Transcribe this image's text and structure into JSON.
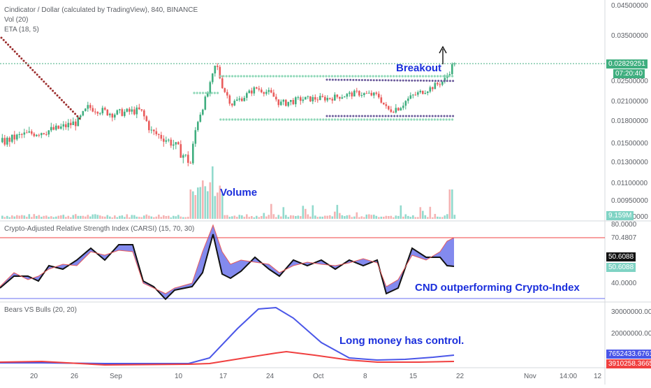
{
  "main_pane": {
    "title": "Cindicator / Dollar (calculated by TradingView), 840, BINANCE",
    "vol_label": "Vol (20)",
    "eta_label": "ETA (18, 5)",
    "price_ticks": [
      "0.04500000",
      "0.03500000",
      "0.02829251",
      "0.02500000",
      "0.02100000",
      "0.01800000",
      "0.01500000",
      "0.01300000",
      "0.01100000",
      "0.00950000",
      "0.00800000"
    ],
    "last_price": "0.02829251",
    "countdown": "07:20:40",
    "volume_value": "9.159M"
  },
  "rsi_pane": {
    "title": "Crypto-Adjusted Relative Strength Index (CARSI) (15, 70, 30)",
    "ticks": [
      "80.0000",
      "70.4807",
      "40.0000"
    ],
    "value_a": "50.6088",
    "value_b": "50.6088"
  },
  "bvb_pane": {
    "title": "Bears VS Bulls (20, 20)",
    "ticks": [
      "30000000.0000",
      "20000000.0000"
    ],
    "value_blue": "7652433.6761",
    "value_red": "3910258.3665"
  },
  "time_axis": [
    "20",
    "26",
    "Sep",
    "10",
    "17",
    "24",
    "Oct",
    "8",
    "15",
    "22",
    "Nov",
    "14:00",
    "12"
  ],
  "annotations": {
    "breakout": "Breakout",
    "volume": "Volume",
    "cnd": "CND outperforming Crypto-Index",
    "long_money": "Long money has control."
  },
  "colors": {
    "up": "#7fd3c4",
    "down": "#e95c5c",
    "up_candle": "#3fae7f",
    "blue_line": "#4a56e8",
    "red_line": "#f04040",
    "annotation": "#1b2fdc",
    "countdown_bg": "#3fae7f"
  },
  "chart_data": [
    {
      "type": "candlestick",
      "title": "Cindicator / Dollar (calculated by TradingView), 840, BINANCE",
      "x": [
        "20",
        "26",
        "Sep",
        "10",
        "17",
        "24",
        "Oct",
        "8",
        "15",
        "22"
      ],
      "close_approx": [
        0.0158,
        0.0172,
        0.0188,
        0.0131,
        0.024,
        0.0222,
        0.021,
        0.0215,
        0.02,
        0.0283
      ],
      "last": 0.02829251,
      "resistance": 0.0245,
      "support": 0.019
    },
    {
      "type": "line",
      "title": "Crypto-Adjusted Relative Strength Index (CARSI) (15, 70, 30)",
      "upper_band": 70.4807,
      "lower_band": 30,
      "last": 50.6088
    },
    {
      "type": "line",
      "title": "Bears VS Bulls (20, 20)",
      "series": [
        {
          "values": [
            1200000,
            1300000,
            900000,
            600000,
            2500000,
            31000000,
            10000000,
            4000000,
            7652433.6761
          ]
        },
        {
          "values": [
            800000,
            1500000,
            1000000,
            500000,
            3000000,
            7000000,
            3000000,
            2000000,
            3910258.3665
          ]
        }
      ]
    }
  ]
}
